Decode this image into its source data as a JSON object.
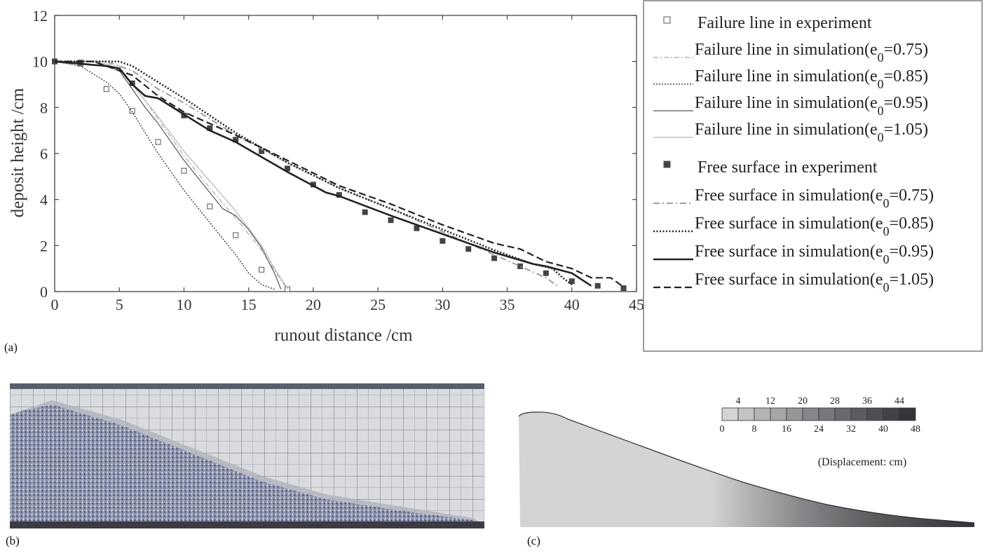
{
  "panels": {
    "a": "(a)",
    "b": "(b)",
    "c": "(c)"
  },
  "colors": {
    "dark": "#222222",
    "mid": "#555555",
    "light": "#9a9a9a",
    "lighter": "#b5b5b5"
  },
  "chart_data": {
    "type": "line",
    "xlabel": "runout distance /cm",
    "ylabel": "deposit height /cm",
    "xlim": [
      0,
      45
    ],
    "ylim": [
      0,
      12
    ],
    "xticks": [
      0,
      5,
      10,
      15,
      20,
      25,
      30,
      35,
      40,
      45
    ],
    "yticks": [
      0,
      2,
      4,
      6,
      8,
      10,
      12
    ],
    "grid": false,
    "legend_position": "right-outside",
    "series": [
      {
        "name": "Failure line in experiment",
        "kind": "scatter",
        "marker": "open-square",
        "x": [
          0,
          2,
          4,
          6,
          8,
          10,
          12,
          14,
          16,
          18
        ],
        "y": [
          10.0,
          9.9,
          8.8,
          7.85,
          6.5,
          5.25,
          3.7,
          2.45,
          0.95,
          0.1
        ]
      },
      {
        "name": "Failure line in simulation(e",
        "sub": "0",
        "suffix": "=0.75)",
        "kind": "line",
        "style": "dashdot-thin",
        "color": "#a8a8a8",
        "x": [
          0,
          3,
          5,
          6,
          7,
          8,
          10,
          12,
          14,
          16,
          17.5,
          18
        ],
        "y": [
          10.0,
          10.0,
          9.8,
          9.0,
          8.3,
          7.5,
          5.9,
          4.5,
          3.2,
          1.8,
          0.5,
          0.1
        ]
      },
      {
        "name": "Failure line in simulation(e",
        "sub": "0",
        "suffix": "=0.85)",
        "kind": "line",
        "style": "dotted-thin",
        "color": "#222222",
        "x": [
          0,
          2,
          4,
          5,
          6,
          7,
          8,
          10,
          12,
          14,
          15,
          16,
          17
        ],
        "y": [
          10.0,
          9.8,
          9.1,
          8.6,
          7.8,
          6.9,
          6.0,
          4.4,
          3.0,
          1.6,
          0.8,
          0.3,
          0.1
        ]
      },
      {
        "name": "Failure line in simulation(e",
        "sub": "0",
        "suffix": "=0.95)",
        "kind": "line",
        "style": "solid-thin",
        "color": "#555555",
        "x": [
          0,
          3,
          5,
          6,
          7,
          8,
          10,
          12,
          13,
          14,
          15,
          16,
          17,
          17.5
        ],
        "y": [
          10.0,
          10.0,
          9.6,
          8.8,
          8.0,
          7.3,
          5.7,
          4.3,
          3.6,
          3.3,
          2.7,
          1.9,
          0.8,
          0.1
        ]
      },
      {
        "name": "Failure line in simulation(e",
        "sub": "0",
        "suffix": "=1.05)",
        "kind": "line",
        "style": "solid-thin",
        "color": "#b5b5b5",
        "x": [
          0,
          3,
          5,
          6,
          7,
          8,
          10,
          12,
          14,
          16,
          17,
          18
        ],
        "y": [
          10.0,
          10.0,
          9.7,
          9.0,
          8.3,
          7.6,
          6.1,
          4.8,
          3.5,
          2.0,
          1.0,
          0.15
        ]
      },
      {
        "name": "Free surface in experiment",
        "kind": "scatter",
        "marker": "filled-square",
        "x": [
          0,
          2,
          6,
          10,
          12,
          14,
          16,
          18,
          20,
          22,
          24,
          26,
          28,
          30,
          32,
          34,
          36,
          38,
          40,
          42,
          44
        ],
        "y": [
          10.0,
          9.95,
          9.05,
          7.65,
          7.1,
          6.6,
          6.1,
          5.35,
          4.65,
          4.2,
          3.45,
          3.1,
          2.75,
          2.2,
          1.85,
          1.45,
          1.1,
          0.8,
          0.45,
          0.25,
          0.15
        ]
      },
      {
        "name": "Free surface in simulation(e",
        "sub": "0",
        "suffix": "=0.75)",
        "kind": "line",
        "style": "dashdot",
        "color": "#a0a0a0",
        "x": [
          0,
          4,
          6,
          8,
          10,
          14,
          18,
          22,
          26,
          30,
          34,
          36,
          38,
          39
        ],
        "y": [
          10.0,
          10.0,
          9.6,
          8.8,
          8.2,
          6.8,
          5.6,
          4.5,
          3.6,
          2.6,
          1.6,
          1.1,
          0.6,
          0.2
        ]
      },
      {
        "name": "Free surface in simulation(e",
        "sub": "0",
        "suffix": "=0.85)",
        "kind": "line",
        "style": "dotted",
        "color": "#222222",
        "x": [
          0,
          5,
          6,
          8,
          10,
          14,
          18,
          22,
          26,
          30,
          34,
          37,
          38.5,
          39.3,
          40
        ],
        "y": [
          10.0,
          10.0,
          9.8,
          9.1,
          8.4,
          6.9,
          5.6,
          4.5,
          3.6,
          2.7,
          1.8,
          1.2,
          1.0,
          0.6,
          0.3
        ]
      },
      {
        "name": "Free surface in simulation(e",
        "sub": "0",
        "suffix": "=0.95)",
        "kind": "line",
        "style": "solid",
        "color": "#222222",
        "x": [
          0,
          4,
          5,
          6,
          7,
          8,
          10,
          12,
          14,
          18,
          20,
          21,
          22,
          26,
          30,
          34,
          37,
          38,
          40,
          41.5
        ],
        "y": [
          10.0,
          9.8,
          9.7,
          9.0,
          8.5,
          8.4,
          7.7,
          7.0,
          6.5,
          5.2,
          4.6,
          4.3,
          4.15,
          3.3,
          2.5,
          1.7,
          1.2,
          1.1,
          0.8,
          0.25
        ]
      },
      {
        "name": "Free surface in simulation(e",
        "sub": "0",
        "suffix": "=1.05)",
        "kind": "line",
        "style": "dashed",
        "color": "#222222",
        "x": [
          0,
          3,
          5,
          6,
          8,
          10,
          14,
          18,
          22,
          26,
          30,
          34,
          36,
          38,
          40,
          41.5,
          43,
          44
        ],
        "y": [
          10.0,
          10.0,
          9.6,
          9.4,
          8.5,
          7.8,
          6.8,
          5.7,
          4.6,
          3.8,
          2.9,
          2.1,
          1.85,
          1.3,
          1.0,
          0.6,
          0.6,
          0.2
        ]
      }
    ]
  },
  "colorbar": {
    "top_labels": [
      "4",
      "12",
      "20",
      "28",
      "36",
      "44"
    ],
    "bottom_labels": [
      "0",
      "8",
      "16",
      "24",
      "32",
      "40",
      "48"
    ],
    "caption": "(Displacement: cm)",
    "colors": [
      "#d3d4d6",
      "#c3c4c6",
      "#b3b4b6",
      "#a4a5a7",
      "#959698",
      "#86878a",
      "#77787b",
      "#696a6d",
      "#5b5c5f",
      "#4e4f52",
      "#414245",
      "#343538"
    ]
  }
}
